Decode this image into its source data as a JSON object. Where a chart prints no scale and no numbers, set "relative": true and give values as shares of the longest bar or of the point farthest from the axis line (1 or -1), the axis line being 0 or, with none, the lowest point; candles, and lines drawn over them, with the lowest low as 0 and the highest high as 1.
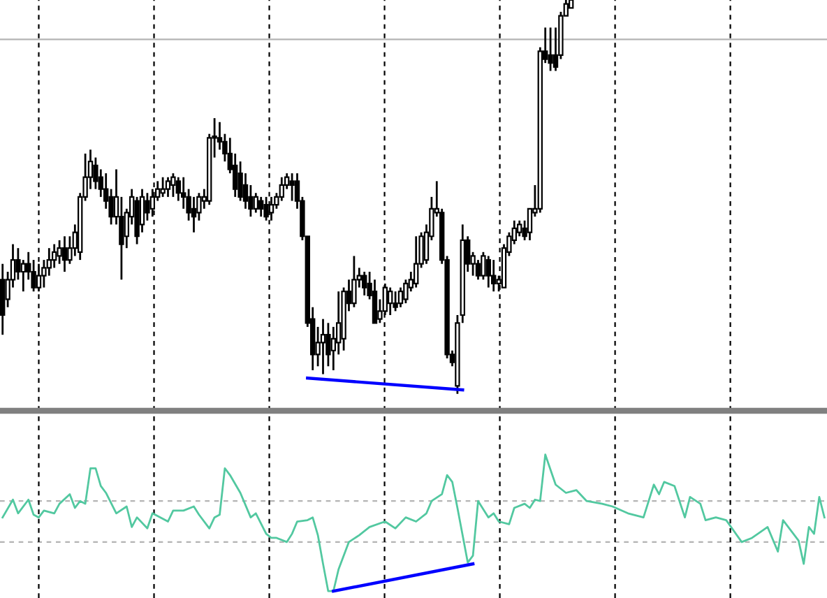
{
  "chart_data": [
    {
      "type": "candlestick",
      "relative": true,
      "categories": [
        null,
        null,
        null,
        null,
        null,
        null,
        null,
        null,
        null,
        null,
        null,
        null,
        null,
        null,
        null,
        null,
        null,
        null,
        null,
        null,
        null,
        null,
        null,
        null,
        null,
        null,
        null,
        null,
        null,
        null,
        null,
        null,
        null,
        null,
        null,
        null,
        null,
        null,
        null,
        null,
        null,
        null,
        null,
        null,
        null,
        null,
        null,
        null,
        null,
        null,
        null,
        null,
        null,
        null,
        null,
        null,
        null,
        null,
        null,
        null,
        null,
        null,
        null,
        null,
        null,
        null,
        null,
        null,
        null,
        null,
        null,
        null,
        null,
        null,
        null,
        null,
        null,
        null,
        null,
        null,
        null,
        null,
        null,
        null,
        null,
        null,
        null,
        null,
        null,
        null,
        null,
        null,
        null,
        null,
        null,
        null,
        null,
        null,
        null,
        null,
        null,
        null,
        null,
        null,
        null,
        null,
        null,
        null,
        null,
        null,
        null,
        null,
        null,
        null,
        null,
        null,
        null,
        null,
        null,
        null,
        null,
        null,
        null,
        null,
        null,
        null,
        null,
        null,
        null,
        null,
        null,
        null,
        null,
        null,
        null,
        null,
        null,
        null,
        null,
        null,
        null,
        null,
        null,
        null,
        null,
        null,
        null,
        null,
        null,
        null,
        null,
        null,
        null,
        null,
        null,
        null,
        null,
        null,
        null,
        null
      ],
      "ohlc": [
        [
          0.29,
          0.33,
          0.15,
          0.2
        ],
        [
          0.24,
          0.31,
          0.22,
          0.29
        ],
        [
          0.29,
          0.38,
          0.27,
          0.34
        ],
        [
          0.34,
          0.37,
          0.29,
          0.31
        ],
        [
          0.31,
          0.34,
          0.26,
          0.33
        ],
        [
          0.33,
          0.36,
          0.29,
          0.31
        ],
        [
          0.31,
          0.34,
          0.26,
          0.27
        ],
        [
          0.27,
          0.33,
          0.26,
          0.3
        ],
        [
          0.3,
          0.34,
          0.27,
          0.32
        ],
        [
          0.32,
          0.37,
          0.3,
          0.34
        ],
        [
          0.34,
          0.38,
          0.32,
          0.36
        ],
        [
          0.35,
          0.39,
          0.33,
          0.37
        ],
        [
          0.37,
          0.4,
          0.31,
          0.34
        ],
        [
          0.34,
          0.4,
          0.33,
          0.37
        ],
        [
          0.37,
          0.43,
          0.35,
          0.41
        ],
        [
          0.36,
          0.51,
          0.34,
          0.5
        ],
        [
          0.5,
          0.61,
          0.49,
          0.55
        ],
        [
          0.55,
          0.62,
          0.52,
          0.59
        ],
        [
          0.58,
          0.6,
          0.52,
          0.54
        ],
        [
          0.55,
          0.57,
          0.5,
          0.52
        ],
        [
          0.52,
          0.56,
          0.47,
          0.49
        ],
        [
          0.5,
          0.52,
          0.43,
          0.45
        ],
        [
          0.45,
          0.57,
          0.43,
          0.5
        ],
        [
          0.45,
          0.5,
          0.29,
          0.38
        ],
        [
          0.4,
          0.47,
          0.37,
          0.46
        ],
        [
          0.45,
          0.52,
          0.43,
          0.5
        ],
        [
          0.49,
          0.5,
          0.38,
          0.4
        ],
        [
          0.43,
          0.52,
          0.41,
          0.5
        ],
        [
          0.49,
          0.51,
          0.44,
          0.46
        ],
        [
          0.47,
          0.52,
          0.45,
          0.5
        ],
        [
          0.5,
          0.54,
          0.49,
          0.52
        ],
        [
          0.51,
          0.55,
          0.5,
          0.52
        ],
        [
          0.52,
          0.55,
          0.5,
          0.54
        ],
        [
          0.53,
          0.56,
          0.5,
          0.55
        ],
        [
          0.54,
          0.55,
          0.49,
          0.51
        ],
        [
          0.51,
          0.55,
          0.47,
          0.5
        ],
        [
          0.5,
          0.52,
          0.44,
          0.46
        ],
        [
          0.47,
          0.5,
          0.41,
          0.45
        ],
        [
          0.46,
          0.51,
          0.44,
          0.5
        ],
        [
          0.49,
          0.52,
          0.47,
          0.5
        ],
        [
          0.49,
          0.66,
          0.48,
          0.65
        ],
        [
          0.65,
          0.7,
          0.6,
          0.65
        ],
        [
          0.65,
          0.69,
          0.62,
          0.64
        ],
        [
          0.64,
          0.66,
          0.59,
          0.61
        ],
        [
          0.61,
          0.65,
          0.56,
          0.57
        ],
        [
          0.58,
          0.61,
          0.5,
          0.52
        ],
        [
          0.56,
          0.59,
          0.49,
          0.5
        ],
        [
          0.53,
          0.56,
          0.47,
          0.49
        ],
        [
          0.5,
          0.53,
          0.45,
          0.47
        ],
        [
          0.47,
          0.51,
          0.46,
          0.5
        ],
        [
          0.49,
          0.5,
          0.45,
          0.47
        ],
        [
          0.48,
          0.5,
          0.44,
          0.45
        ],
        [
          0.46,
          0.5,
          0.44,
          0.48
        ],
        [
          0.48,
          0.51,
          0.47,
          0.5
        ],
        [
          0.5,
          0.55,
          0.49,
          0.53
        ],
        [
          0.53,
          0.56,
          0.52,
          0.55
        ],
        [
          0.54,
          0.56,
          0.49,
          0.53
        ],
        [
          0.54,
          0.56,
          0.47,
          0.49
        ],
        [
          0.49,
          0.5,
          0.39,
          0.4
        ],
        [
          0.4,
          0.4,
          0.17,
          0.18
        ],
        [
          0.19,
          0.22,
          0.06,
          0.1
        ],
        [
          0.1,
          0.17,
          0.07,
          0.13
        ],
        [
          0.13,
          0.19,
          0.05,
          0.15
        ],
        [
          0.15,
          0.18,
          0.07,
          0.1
        ],
        [
          0.11,
          0.17,
          0.06,
          0.14
        ],
        [
          0.13,
          0.26,
          0.1,
          0.18
        ],
        [
          0.14,
          0.27,
          0.11,
          0.26
        ],
        [
          0.26,
          0.29,
          0.21,
          0.23
        ],
        [
          0.23,
          0.35,
          0.22,
          0.29
        ],
        [
          0.29,
          0.32,
          0.27,
          0.3
        ],
        [
          0.3,
          0.31,
          0.25,
          0.27
        ],
        [
          0.28,
          0.31,
          0.24,
          0.25
        ],
        [
          0.26,
          0.29,
          0.18,
          0.18
        ],
        [
          0.19,
          0.24,
          0.18,
          0.21
        ],
        [
          0.21,
          0.28,
          0.2,
          0.27
        ],
        [
          0.23,
          0.27,
          0.2,
          0.26
        ],
        [
          0.23,
          0.26,
          0.21,
          0.22
        ],
        [
          0.23,
          0.27,
          0.22,
          0.26
        ],
        [
          0.24,
          0.29,
          0.23,
          0.28
        ],
        [
          0.27,
          0.31,
          0.26,
          0.29
        ],
        [
          0.28,
          0.4,
          0.27,
          0.33
        ],
        [
          0.33,
          0.41,
          0.32,
          0.4
        ],
        [
          0.34,
          0.43,
          0.33,
          0.41
        ],
        [
          0.4,
          0.5,
          0.39,
          0.47
        ],
        [
          0.46,
          0.54,
          0.45,
          0.47
        ],
        [
          0.46,
          0.47,
          0.33,
          0.34
        ],
        [
          0.34,
          0.35,
          0.09,
          0.1
        ],
        [
          0.1,
          0.11,
          0.07,
          0.08
        ],
        [
          0.02,
          0.2,
          0,
          0.18
        ],
        [
          0.2,
          0.43,
          0.18,
          0.39
        ],
        [
          0.39,
          0.4,
          0.31,
          0.33
        ],
        [
          0.33,
          0.36,
          0.3,
          0.35
        ],
        [
          0.33,
          0.34,
          0.29,
          0.3
        ],
        [
          0.3,
          0.36,
          0.29,
          0.35
        ],
        [
          0.34,
          0.35,
          0.27,
          0.3
        ],
        [
          0.3,
          0.34,
          0.26,
          0.28
        ],
        [
          0.28,
          0.3,
          0.26,
          0.29
        ],
        [
          0.27,
          0.38,
          0.27,
          0.37
        ],
        [
          0.36,
          0.41,
          0.35,
          0.4
        ],
        [
          0.39,
          0.44,
          0.38,
          0.42
        ],
        [
          0.41,
          0.44,
          0.4,
          0.43
        ],
        [
          0.42,
          0.44,
          0.39,
          0.4
        ],
        [
          0.41,
          0.47,
          0.39,
          0.47
        ],
        [
          0.46,
          0.53,
          0.45,
          0.47
        ],
        [
          0.47,
          0.88,
          0.46,
          0.87
        ],
        [
          0.87,
          0.93,
          0.84,
          0.85
        ],
        [
          0.86,
          0.93,
          0.82,
          0.84
        ],
        [
          0.86,
          0.93,
          0.82,
          0.83
        ],
        [
          0.86,
          0.97,
          0.85,
          0.96
        ],
        [
          0.96,
          1,
          0.96,
          0.99
        ],
        [
          0.98,
          1,
          0.98,
          1
        ],
        null,
        null,
        null,
        null,
        null,
        null,
        null,
        null,
        null,
        null,
        null,
        null,
        null,
        null,
        null,
        null,
        null,
        null,
        null,
        null,
        null,
        null,
        null,
        null,
        null,
        null,
        null,
        null,
        null,
        null,
        null,
        null,
        null,
        null,
        null,
        null,
        null,
        null,
        null,
        null,
        null,
        null,
        null,
        null,
        null,
        null,
        null,
        null,
        null
      ],
      "series": [
        {
          "type": "line",
          "color": "#0000ff",
          "values": [
            null,
            null,
            null,
            null,
            null,
            null,
            null,
            null,
            null,
            null,
            null,
            null,
            null,
            null,
            null,
            null,
            null,
            null,
            null,
            null,
            null,
            null,
            null,
            null,
            null,
            null,
            null,
            null,
            null,
            null,
            null,
            null,
            null,
            null,
            null,
            null,
            null,
            null,
            null,
            null,
            null,
            null,
            null,
            null,
            null,
            null,
            null,
            null,
            null,
            null,
            null,
            null,
            null,
            null,
            null,
            null,
            null,
            null,
            null,
            0.04,
            null,
            null,
            null,
            null,
            null,
            null,
            null,
            null,
            null,
            null,
            null,
            null,
            null,
            null,
            null,
            null,
            null,
            null,
            null,
            null,
            null,
            null,
            null,
            null,
            null,
            null,
            null,
            null,
            null,
            0.01,
            null,
            null,
            null,
            null,
            null,
            null,
            null,
            null,
            null,
            null,
            null,
            null,
            null,
            null,
            null,
            null,
            null,
            null,
            null,
            null,
            null,
            null,
            null,
            null,
            null,
            null,
            null,
            null,
            null,
            null,
            null,
            null,
            null,
            null,
            null,
            null,
            null,
            null,
            null,
            null,
            null,
            null,
            null,
            null,
            null,
            null,
            null,
            null,
            null,
            null,
            null,
            null,
            null,
            null,
            null,
            null,
            null,
            null,
            null,
            null,
            null,
            null,
            null,
            null,
            null,
            null,
            null,
            null,
            null,
            null
          ]
        }
      ],
      "ref_lines": [
        {
          "axis": "y",
          "value": 0.9,
          "color": "#b4b4b4",
          "line_style": "solid"
        }
      ]
    },
    {
      "type": "line",
      "relative": true,
      "categories": [
        null,
        null,
        null,
        null,
        null,
        null,
        null,
        null,
        null,
        null,
        null,
        null,
        null,
        null,
        null,
        null,
        null,
        null,
        null,
        null,
        null,
        null,
        null,
        null,
        null,
        null,
        null,
        null,
        null,
        null,
        null,
        null,
        null,
        null,
        null,
        null,
        null,
        null,
        null,
        null,
        null,
        null,
        null,
        null,
        null,
        null,
        null,
        null,
        null,
        null,
        null,
        null,
        null,
        null,
        null,
        null,
        null,
        null,
        null,
        null,
        null,
        null,
        null,
        null,
        null,
        null,
        null,
        null,
        null,
        null,
        null,
        null,
        null,
        null,
        null,
        null,
        null,
        null,
        null,
        null,
        null,
        null,
        null,
        null,
        null,
        null,
        null,
        null,
        null,
        null,
        null,
        null,
        null,
        null,
        null,
        null,
        null,
        null,
        null,
        null,
        null,
        null,
        null,
        null,
        null,
        null,
        null,
        null,
        null,
        null,
        null,
        null,
        null,
        null,
        null,
        null,
        null,
        null,
        null,
        null,
        null,
        null,
        null,
        null,
        null,
        null,
        null,
        null,
        null,
        null,
        null,
        null,
        null,
        null,
        null,
        null,
        null,
        null,
        null,
        null,
        null,
        null,
        null,
        null,
        null,
        null,
        null,
        null,
        null,
        null,
        null,
        null,
        null,
        null,
        null,
        null,
        null,
        null,
        null,
        null
      ],
      "series": [
        {
          "color": "#52c8a0",
          "values": [
            0.54,
            null,
            0.67,
            0.57,
            null,
            0.67,
            0.56,
            0.54,
            0.59,
            null,
            0.57,
            0.64,
            null,
            0.71,
            0.61,
            0.66,
            0.64,
            0.9,
            0.9,
            0.77,
            0.72,
            null,
            0.57,
            null,
            0.62,
            0.47,
            0.54,
            null,
            0.46,
            0.57,
            null,
            null,
            0.51,
            0.59,
            null,
            0.59,
            null,
            0.62,
            0.56,
            null,
            0.46,
            0.54,
            0.56,
            0.9,
            0.85,
            null,
            0.72,
            null,
            0.54,
            0.57,
            null,
            0.42,
            0.39,
            0.39,
            null,
            0.36,
            0.42,
            0.51,
            null,
            0.52,
            0.54,
            0.41,
            0.2,
            0,
            0,
            0.16,
            null,
            0.36,
            null,
            0.41,
            null,
            0.47,
            null,
            null,
            0.51,
            null,
            0.46,
            null,
            0.54,
            null,
            0.51,
            null,
            0.57,
            0.66,
            null,
            0.71,
            0.85,
            0.8,
            0.61,
            null,
            0.21,
            0.26,
            0.66,
            null,
            0.54,
            0.57,
            0.51,
            null,
            0.49,
            0.61,
            null,
            0.64,
            0.61,
            0.67,
            0.66,
            1,
            null,
            0.78,
            null,
            0.72,
            null,
            0.74,
            null,
            0.66,
            null,
            null,
            0.64,
            null,
            0.62,
            null,
            null,
            0.57,
            null,
            null,
            0.54,
            null,
            0.78,
            0.71,
            0.8,
            null,
            0.77,
            null,
            0.54,
            0.69,
            null,
            0.64,
            0.52,
            null,
            0.54,
            null,
            0.52,
            null,
            null,
            0.36,
            null,
            0.39,
            null,
            null,
            0.47,
            null,
            0.29,
            0.52,
            null,
            null,
            0.37,
            0.2,
            0.47,
            0.42,
            0.69,
            0.54
          ]
        },
        {
          "color": "#0000ff",
          "values": [
            null,
            null,
            null,
            null,
            null,
            null,
            null,
            null,
            null,
            null,
            null,
            null,
            null,
            null,
            null,
            null,
            null,
            null,
            null,
            null,
            null,
            null,
            null,
            null,
            null,
            null,
            null,
            null,
            null,
            null,
            null,
            null,
            null,
            null,
            null,
            null,
            null,
            null,
            null,
            null,
            null,
            null,
            null,
            null,
            null,
            null,
            null,
            null,
            null,
            null,
            null,
            null,
            null,
            null,
            null,
            null,
            null,
            null,
            null,
            null,
            null,
            null,
            null,
            null,
            0,
            null,
            null,
            null,
            null,
            null,
            null,
            null,
            null,
            null,
            null,
            null,
            null,
            null,
            null,
            null,
            null,
            null,
            null,
            null,
            null,
            null,
            null,
            null,
            null,
            null,
            null,
            0.2,
            null,
            null,
            null,
            null,
            null,
            null,
            null,
            null,
            null,
            null,
            null,
            null,
            null,
            null,
            null,
            null,
            null,
            null,
            null,
            null,
            null,
            null,
            null,
            null,
            null,
            null,
            null,
            null,
            null,
            null,
            null,
            null,
            null,
            null,
            null,
            null,
            null,
            null,
            null,
            null,
            null,
            null,
            null,
            null,
            null,
            null,
            null,
            null,
            null,
            null,
            null,
            null,
            null,
            null,
            null,
            null,
            null,
            null,
            null,
            null,
            null,
            null,
            null,
            null,
            null,
            null,
            null,
            null
          ]
        }
      ],
      "ref_lines": [
        {
          "axis": "y",
          "value": 0.66,
          "color": "#b4b4b4",
          "line_style": "dashed"
        },
        {
          "axis": "y",
          "value": 0.36,
          "color": "#b4b4b4",
          "line_style": "dashed"
        }
      ]
    }
  ]
}
